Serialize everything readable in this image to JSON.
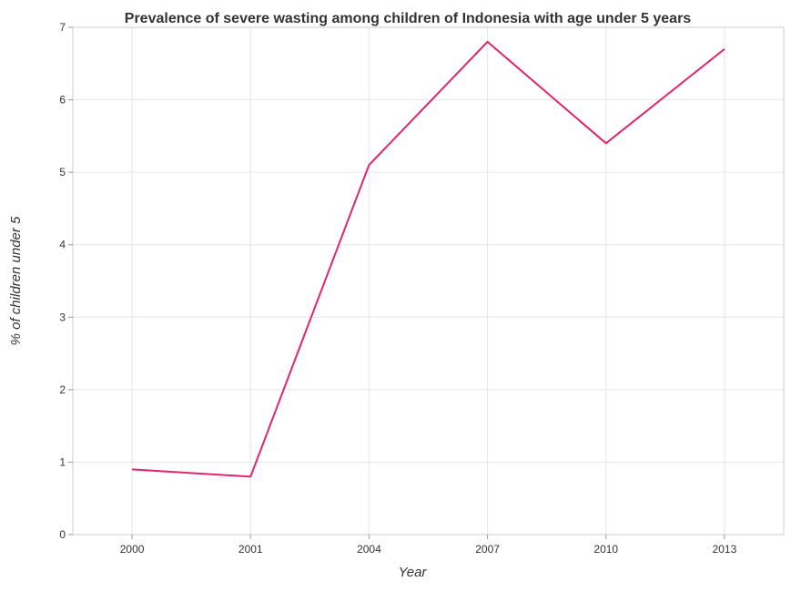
{
  "chart_data": {
    "type": "line",
    "title": "Prevalence of severe wasting among children of Indonesia with age under 5 years",
    "xlabel": "Year",
    "ylabel": "% of children under 5",
    "categories": [
      "2000",
      "2001",
      "2004",
      "2007",
      "2010",
      "2013"
    ],
    "series": [
      {
        "values": [
          0.9,
          0.8,
          5.1,
          6.8,
          5.4,
          6.7
        ],
        "color": "#e0256e"
      }
    ],
    "ylim": [
      0,
      7
    ],
    "yticks": [
      "0",
      "1",
      "2",
      "3",
      "4",
      "5",
      "6",
      "7"
    ],
    "grid": true,
    "legend": "none"
  }
}
